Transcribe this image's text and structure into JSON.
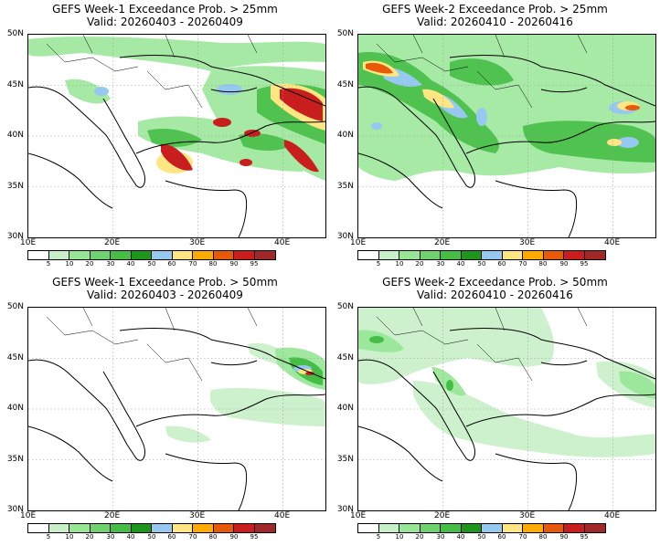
{
  "panels": [
    {
      "title_line1": "GEFS Week-1 Exceedance Prob. > 25mm",
      "title_line2": "Valid: 20260403 - 20260409"
    },
    {
      "title_line1": "GEFS Week-2 Exceedance Prob. > 25mm",
      "title_line2": "Valid: 20260410 - 20260416"
    },
    {
      "title_line1": "GEFS Week-1 Exceedance Prob. > 50mm",
      "title_line2": "Valid: 20260403 - 20260409"
    },
    {
      "title_line1": "GEFS Week-2 Exceedance Prob. > 50mm",
      "title_line2": "Valid: 20260410 - 20260416"
    }
  ],
  "axes": {
    "lat_labels": [
      "50N",
      "45N",
      "40N",
      "35N",
      "30N"
    ],
    "lon_labels": [
      "10E",
      "20E",
      "30E",
      "40E"
    ]
  },
  "colorbar": {
    "labels": [
      "5",
      "10",
      "20",
      "30",
      "40",
      "50",
      "60",
      "70",
      "80",
      "90",
      "95"
    ],
    "colors": [
      "#ffffff",
      "#c8f0c8",
      "#96e696",
      "#6ed26e",
      "#46be46",
      "#1e961e",
      "#96c8f0",
      "#ffe682",
      "#ffaa00",
      "#e65a0a",
      "#c81e1e",
      "#a02828"
    ]
  }
}
